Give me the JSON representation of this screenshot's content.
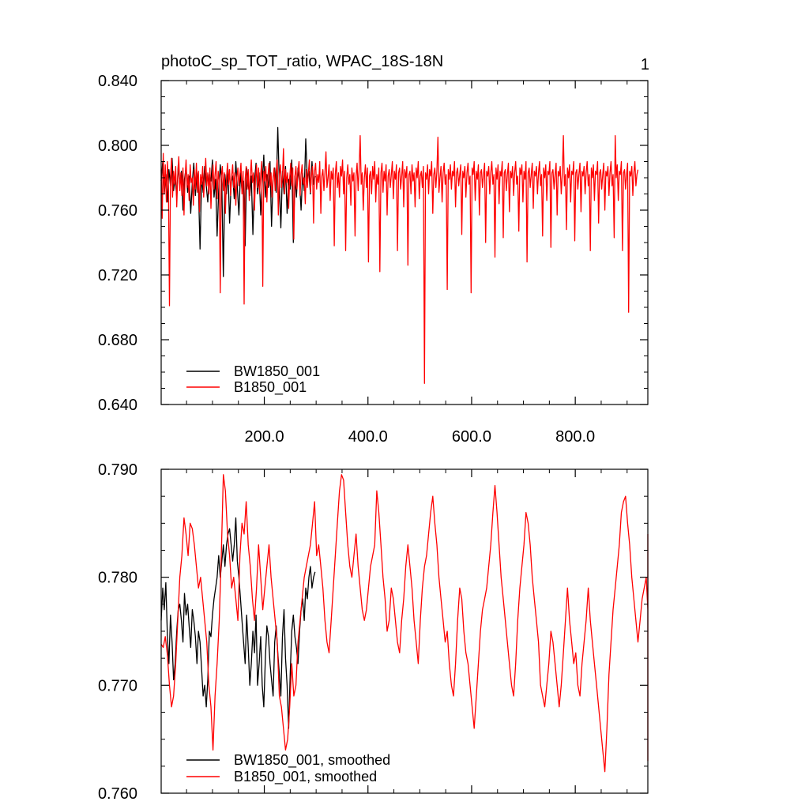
{
  "chart_data": [
    {
      "type": "line",
      "title": "photoC_sp_TOT_ratio, WPAC_18S-18N",
      "panel_label": "1",
      "xlim": [
        1,
        940
      ],
      "ylim": [
        0.64,
        0.84
      ],
      "xticks": [
        200,
        400,
        600,
        800
      ],
      "xtick_labels": [
        "200.0",
        "400.0",
        "600.0",
        "800.0"
      ],
      "yticks": [
        0.64,
        0.68,
        0.72,
        0.76,
        0.8,
        0.84
      ],
      "ytick_labels": [
        "0.640",
        "0.680",
        "0.720",
        "0.760",
        "0.800",
        "0.840"
      ],
      "grid": false,
      "legend_position": "bottom-left",
      "series": [
        {
          "name": "BW1850_001",
          "color": "#000000",
          "x_start": 1,
          "x_step": 3,
          "values": [
            0.778,
            0.79,
            0.77,
            0.782,
            0.765,
            0.785,
            0.775,
            0.792,
            0.772,
            0.78,
            0.768,
            0.788,
            0.776,
            0.784,
            0.76,
            0.779,
            0.786,
            0.771,
            0.781,
            0.758,
            0.777,
            0.789,
            0.769,
            0.783,
            0.774,
            0.736,
            0.78,
            0.771,
            0.787,
            0.775,
            0.765,
            0.782,
            0.778,
            0.791,
            0.768,
            0.779,
            0.744,
            0.772,
            0.788,
            0.776,
            0.719,
            0.782,
            0.77,
            0.785,
            0.752,
            0.777,
            0.781,
            0.767,
            0.79,
            0.774,
            0.757,
            0.783,
            0.772,
            0.778,
            0.738,
            0.786,
            0.775,
            0.769,
            0.781,
            0.745,
            0.778,
            0.789,
            0.77,
            0.783,
            0.757,
            0.777,
            0.794,
            0.768,
            0.782,
            0.774,
            0.79,
            0.75,
            0.78,
            0.786,
            0.771,
            0.811,
            0.776,
            0.749,
            0.784,
            0.77,
            0.787,
            0.758,
            0.779,
            0.773,
            0.791,
            0.74,
            0.781,
            0.768,
            0.786,
            0.777,
            0.76,
            0.783,
            0.772,
            0.804,
            0.779,
            0.784,
            0.77,
            0.79,
            0.776,
            0.781
          ]
        },
        {
          "name": "B1850_001",
          "color": "#ff0000",
          "x_start": 1,
          "x_step": 2,
          "values": [
            0.785,
            0.755,
            0.795,
            0.77,
            0.788,
            0.765,
            0.79,
            0.775,
            0.701,
            0.78,
            0.792,
            0.768,
            0.784,
            0.776,
            0.787,
            0.762,
            0.781,
            0.793,
            0.772,
            0.783,
            0.769,
            0.786,
            0.757,
            0.779,
            0.791,
            0.774,
            0.782,
            0.766,
            0.788,
            0.777,
            0.78,
            0.763,
            0.785,
            0.773,
            0.789,
            0.771,
            0.784,
            0.759,
            0.782,
            0.776,
            0.787,
            0.768,
            0.78,
            0.792,
            0.775,
            0.783,
            0.77,
            0.786,
            0.761,
            0.779,
            0.788,
            0.773,
            0.782,
            0.79,
            0.767,
            0.784,
            0.778,
            0.709,
            0.781,
            0.787,
            0.772,
            0.783,
            0.758,
            0.78,
            0.789,
            0.776,
            0.785,
            0.769,
            0.781,
            0.788,
            0.774,
            0.783,
            0.763,
            0.78,
            0.786,
            0.775,
            0.782,
            0.789,
            0.77,
            0.784,
            0.702,
            0.779,
            0.787,
            0.773,
            0.785,
            0.766,
            0.781,
            0.791,
            0.777,
            0.783,
            0.76,
            0.78,
            0.788,
            0.774,
            0.786,
            0.77,
            0.782,
            0.79,
            0.713,
            0.784,
            0.778,
            0.787,
            0.765,
            0.781,
            0.789,
            0.775,
            0.783,
            0.768,
            0.78,
            0.786,
            0.772,
            0.784,
            0.791,
            0.757,
            0.782,
            0.788,
            0.774,
            0.78,
            0.798,
            0.77,
            0.785,
            0.777,
            0.783,
            0.761,
            0.78,
            0.789,
            0.775,
            0.786,
            0.742,
            0.781,
            0.787,
            0.773,
            0.784,
            0.79,
            0.769,
            0.782,
            0.788,
            0.776,
            0.78,
            0.764,
            0.785,
            0.774,
            0.783,
            0.791,
            0.771,
            0.781,
            0.787,
            0.752,
            0.784,
            0.789,
            0.773,
            0.782,
            0.777,
            0.79,
            0.758,
            0.781,
            0.785,
            0.772,
            0.783,
            0.796,
            0.774,
            0.78,
            0.788,
            0.766,
            0.784,
            0.779,
            0.786,
            0.738,
            0.782,
            0.79,
            0.774,
            0.783,
            0.768,
            0.787,
            0.781,
            0.791,
            0.77,
            0.784,
            0.735,
            0.78,
            0.788,
            0.776,
            0.782,
            0.763,
            0.786,
            0.778,
            0.783,
            0.744,
            0.781,
            0.789,
            0.772,
            0.785,
            0.806,
            0.776,
            0.783,
            0.76,
            0.78,
            0.788,
            0.774,
            0.786,
            0.728,
            0.781,
            0.784,
            0.77,
            0.787,
            0.779,
            0.79,
            0.765,
            0.782,
            0.776,
            0.786,
            0.722,
            0.783,
            0.789,
            0.771,
            0.784,
            0.778,
            0.788,
            0.757,
            0.781,
            0.785,
            0.774,
            0.782,
            0.79,
            0.767,
            0.784,
            0.779,
            0.788,
            0.735,
            0.783,
            0.786,
            0.773,
            0.781,
            0.79,
            0.762,
            0.785,
            0.78,
            0.787,
            0.726,
            0.782,
            0.784,
            0.77,
            0.788,
            0.778,
            0.783,
            0.762,
            0.786,
            0.78,
            0.79,
            0.767,
            0.781,
            0.784,
            0.774,
            0.787,
            0.653,
            0.783,
            0.779,
            0.788,
            0.77,
            0.785,
            0.781,
            0.79,
            0.758,
            0.782,
            0.786,
            0.774,
            0.784,
            0.805,
            0.771,
            0.78,
            0.787,
            0.765,
            0.783,
            0.789,
            0.776,
            0.782,
            0.711,
            0.785,
            0.779,
            0.788,
            0.773,
            0.784,
            0.781,
            0.79,
            0.762,
            0.783,
            0.786,
            0.775,
            0.782,
            0.788,
            0.745,
            0.784,
            0.78,
            0.787,
            0.768,
            0.783,
            0.789,
            0.776,
            0.781,
            0.709,
            0.786,
            0.782,
            0.79,
            0.766,
            0.784,
            0.779,
            0.788,
            0.757,
            0.783,
            0.785,
            0.774,
            0.782,
            0.789,
            0.74,
            0.784,
            0.781,
            0.787,
            0.77,
            0.783,
            0.79,
            0.776,
            0.782,
            0.731,
            0.786,
            0.779,
            0.788,
            0.764,
            0.784,
            0.781,
            0.79,
            0.743,
            0.783,
            0.785,
            0.772,
            0.782,
            0.789,
            0.759,
            0.784,
            0.78,
            0.787,
            0.769,
            0.783,
            0.79,
            0.776,
            0.781,
            0.747,
            0.786,
            0.782,
            0.788,
            0.765,
            0.784,
            0.779,
            0.79,
            0.728,
            0.783,
            0.786,
            0.774,
            0.782,
            0.789,
            0.761,
            0.784,
            0.781,
            0.787,
            0.77,
            0.783,
            0.79,
            0.775,
            0.782,
            0.744,
            0.786,
            0.78,
            0.788,
            0.766,
            0.784,
            0.782,
            0.79,
            0.737,
            0.783,
            0.785,
            0.773,
            0.782,
            0.789,
            0.757,
            0.784,
            0.781,
            0.787,
            0.77,
            0.783,
            0.806,
            0.775,
            0.782,
            0.748,
            0.786,
            0.78,
            0.788,
            0.765,
            0.784,
            0.782,
            0.79,
            0.741,
            0.783,
            0.785,
            0.773,
            0.782,
            0.789,
            0.759,
            0.784,
            0.781,
            0.787,
            0.77,
            0.783,
            0.79,
            0.775,
            0.782,
            0.735,
            0.786,
            0.78,
            0.788,
            0.766,
            0.784,
            0.782,
            0.79,
            0.752,
            0.783,
            0.785,
            0.773,
            0.782,
            0.789,
            0.76,
            0.784,
            0.781,
            0.787,
            0.769,
            0.783,
            0.79,
            0.775,
            0.782,
            0.743,
            0.806,
            0.78,
            0.788,
            0.766,
            0.784,
            0.782,
            0.79,
            0.735,
            0.783,
            0.785,
            0.773,
            0.782,
            0.789,
            0.697,
            0.784,
            0.781,
            0.787,
            0.769,
            0.783,
            0.79,
            0.775,
            0.782,
            0.785
          ]
        }
      ]
    },
    {
      "type": "line",
      "xlim": [
        1,
        940
      ],
      "ylim": [
        0.76,
        0.79
      ],
      "xticks": [
        200,
        400,
        600,
        800
      ],
      "yticks": [
        0.76,
        0.77,
        0.78,
        0.79
      ],
      "ytick_labels": [
        "0.760",
        "0.770",
        "0.780",
        "0.790"
      ],
      "grid": false,
      "legend_position": "bottom-left",
      "series": [
        {
          "name": "BW1850_001, smoothed",
          "color": "#000000",
          "x_start": 1,
          "x_step": 3,
          "values": [
            0.776,
            0.779,
            0.777,
            0.7795,
            0.7745,
            0.772,
            0.7765,
            0.774,
            0.7705,
            0.772,
            0.775,
            0.777,
            0.7775,
            0.776,
            0.774,
            0.7785,
            0.7765,
            0.7775,
            0.7755,
            0.7735,
            0.777,
            0.776,
            0.7745,
            0.772,
            0.775,
            0.774,
            0.7715,
            0.769,
            0.77,
            0.768,
            0.7705,
            0.775,
            0.7745,
            0.7765,
            0.778,
            0.779,
            0.78,
            0.782,
            0.78,
            0.7815,
            0.783,
            0.781,
            0.783,
            0.784,
            0.7845,
            0.783,
            0.7815,
            0.783,
            0.7855,
            0.7815,
            0.78,
            0.778,
            0.776,
            0.774,
            0.772,
            0.7765,
            0.7735,
            0.77,
            0.772,
            0.775,
            0.773,
            0.7765,
            0.77,
            0.772,
            0.7745,
            0.77,
            0.768,
            0.7725,
            0.7755,
            0.7745,
            0.772,
            0.7705,
            0.769,
            0.774,
            0.7755,
            0.773,
            0.771,
            0.769,
            0.7745,
            0.777,
            0.7725,
            0.77,
            0.766,
            0.771,
            0.775,
            0.7765,
            0.7745,
            0.7735,
            0.772,
            0.775,
            0.777,
            0.778,
            0.776,
            0.779,
            0.778,
            0.78,
            0.781,
            0.779,
            0.78,
            0.7805
          ]
        },
        {
          "name": "B1850_001, smoothed",
          "color": "#ff0000",
          "x_start": 1,
          "x_step": 4,
          "values": [
            0.7738,
            0.7735,
            0.7745,
            0.7728,
            0.77,
            0.768,
            0.769,
            0.772,
            0.776,
            0.78,
            0.782,
            0.7855,
            0.784,
            0.782,
            0.785,
            0.7845,
            0.783,
            0.781,
            0.779,
            0.78,
            0.778,
            0.776,
            0.774,
            0.77,
            0.768,
            0.764,
            0.769,
            0.772,
            0.776,
            0.782,
            0.7895,
            0.788,
            0.784,
            0.782,
            0.779,
            0.78,
            0.778,
            0.776,
            0.782,
            0.785,
            0.784,
            0.787,
            0.783,
            0.781,
            0.778,
            0.776,
            0.779,
            0.783,
            0.78,
            0.777,
            0.779,
            0.781,
            0.783,
            0.78,
            0.778,
            0.776,
            0.774,
            0.769,
            0.768,
            0.766,
            0.764,
            0.765,
            0.768,
            0.772,
            0.769,
            0.77,
            0.774,
            0.776,
            0.778,
            0.78,
            0.781,
            0.782,
            0.783,
            0.785,
            0.787,
            0.782,
            0.783,
            0.781,
            0.779,
            0.776,
            0.774,
            0.773,
            0.776,
            0.779,
            0.782,
            0.785,
            0.788,
            0.7895,
            0.789,
            0.786,
            0.783,
            0.781,
            0.78,
            0.782,
            0.784,
            0.781,
            0.779,
            0.777,
            0.776,
            0.777,
            0.779,
            0.781,
            0.782,
            0.783,
            0.788,
            0.786,
            0.783,
            0.78,
            0.778,
            0.775,
            0.776,
            0.779,
            0.778,
            0.776,
            0.774,
            0.773,
            0.776,
            0.778,
            0.781,
            0.783,
            0.781,
            0.779,
            0.776,
            0.774,
            0.772,
            0.776,
            0.779,
            0.781,
            0.782,
            0.784,
            0.786,
            0.7875,
            0.785,
            0.783,
            0.78,
            0.778,
            0.776,
            0.774,
            0.775,
            0.772,
            0.77,
            0.769,
            0.772,
            0.776,
            0.779,
            0.778,
            0.775,
            0.773,
            0.772,
            0.77,
            0.768,
            0.766,
            0.769,
            0.772,
            0.775,
            0.777,
            0.778,
            0.779,
            0.781,
            0.783,
            0.786,
            0.7885,
            0.786,
            0.783,
            0.78,
            0.778,
            0.776,
            0.774,
            0.772,
            0.77,
            0.769,
            0.772,
            0.776,
            0.779,
            0.781,
            0.783,
            0.786,
            0.785,
            0.783,
            0.78,
            0.778,
            0.776,
            0.774,
            0.77,
            0.769,
            0.768,
            0.77,
            0.772,
            0.775,
            0.774,
            0.772,
            0.77,
            0.768,
            0.77,
            0.773,
            0.776,
            0.779,
            0.776,
            0.774,
            0.772,
            0.773,
            0.77,
            0.769,
            0.772,
            0.774,
            0.776,
            0.779,
            0.776,
            0.774,
            0.772,
            0.77,
            0.768,
            0.766,
            0.764,
            0.762,
            0.766,
            0.771,
            0.774,
            0.777,
            0.779,
            0.781,
            0.783,
            0.786,
            0.787,
            0.7875,
            0.785,
            0.783,
            0.78,
            0.778,
            0.776,
            0.774,
            0.776,
            0.778,
            0.779,
            0.78,
            0.777,
            0.775,
            0.776,
            0.778,
            0.78,
            0.781,
            0.779,
            0.777,
            0.775,
            0.773,
            0.775,
            0.777,
            0.779,
            0.781,
            0.782,
            0.783,
            0.7835,
            0.78,
            0.776,
            0.772,
            0.769,
            0.766,
            0.763,
            0.767,
            0.772,
            0.776,
            0.778,
            0.784
          ]
        }
      ]
    }
  ],
  "colors": {
    "bw1850": "#000000",
    "b1850": "#ff0000",
    "axis": "#000000",
    "background": "#ffffff"
  }
}
